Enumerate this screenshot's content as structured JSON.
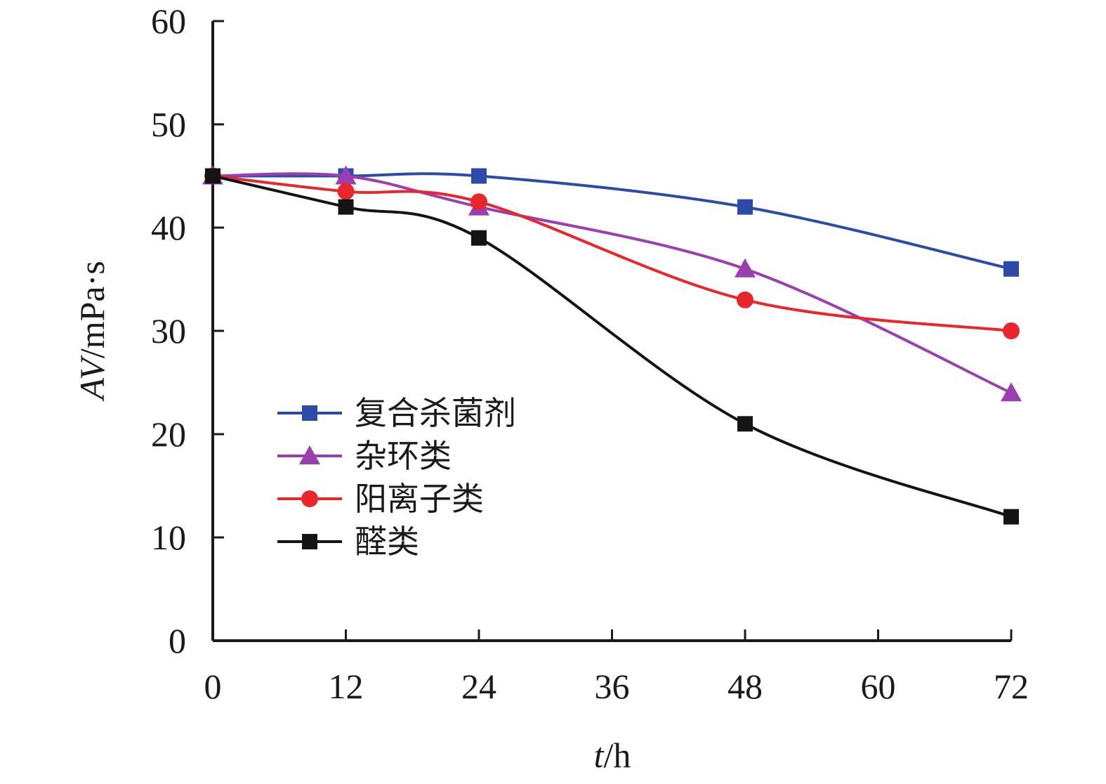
{
  "chart_data": {
    "type": "line",
    "title": "",
    "xlabel": {
      "italic": "t",
      "rest": "/h"
    },
    "ylabel": {
      "italic": "AV",
      "rest": "/mPa·s"
    },
    "xlim": [
      0,
      72
    ],
    "ylim": [
      0,
      60
    ],
    "xticks": [
      0,
      12,
      24,
      36,
      48,
      60,
      72
    ],
    "yticks": [
      0,
      10,
      20,
      30,
      40,
      50,
      60
    ],
    "grid": false,
    "legend": "center-left",
    "series": [
      {
        "name": "复合杀菌剂",
        "color": "#2c4ba8",
        "marker": "square",
        "x": [
          0,
          12,
          24,
          48,
          72
        ],
        "values": [
          45,
          45,
          45,
          42,
          36
        ]
      },
      {
        "name": "杂环类",
        "color": "#9b3fb0",
        "marker": "triangle",
        "x": [
          0,
          12,
          24,
          48,
          72
        ],
        "values": [
          45,
          45,
          42,
          36,
          24
        ]
      },
      {
        "name": "阳离子类",
        "color": "#e8262c",
        "marker": "circle",
        "x": [
          0,
          12,
          24,
          48,
          72
        ],
        "values": [
          45,
          43.5,
          42.5,
          33,
          30
        ]
      },
      {
        "name": "醛类",
        "color": "#141414",
        "marker": "square",
        "x": [
          0,
          12,
          24,
          48,
          72
        ],
        "values": [
          45,
          42,
          39,
          21,
          12
        ]
      }
    ]
  }
}
